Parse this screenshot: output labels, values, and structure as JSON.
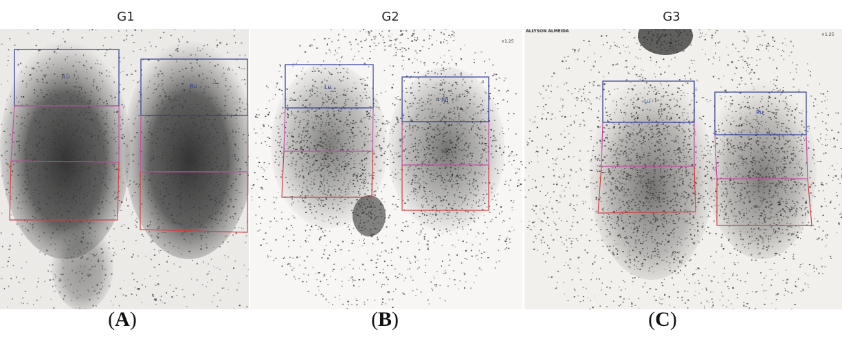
{
  "panels": [
    {
      "group": "G1",
      "label_letter": "A",
      "roi": {
        "upper_left": "Lu",
        "upper_right": "Ru"
      }
    },
    {
      "group": "G2",
      "label_letter": "B",
      "scale": "×1.25",
      "roi": {
        "upper_left": "Lu",
        "upper_right": "Ru"
      }
    },
    {
      "group": "G3",
      "label_letter": "C",
      "scale": "×1.25",
      "patient_name": "ALLYSON ALMEIDA",
      "roi": {
        "upper_left": "Lu",
        "upper_right": "Ru"
      }
    }
  ],
  "colors": {
    "upper_roi": "#2a3a9a",
    "middle_roi": "#c050a0",
    "lower_roi": "#d04040",
    "counts": "#1a1a1a"
  }
}
